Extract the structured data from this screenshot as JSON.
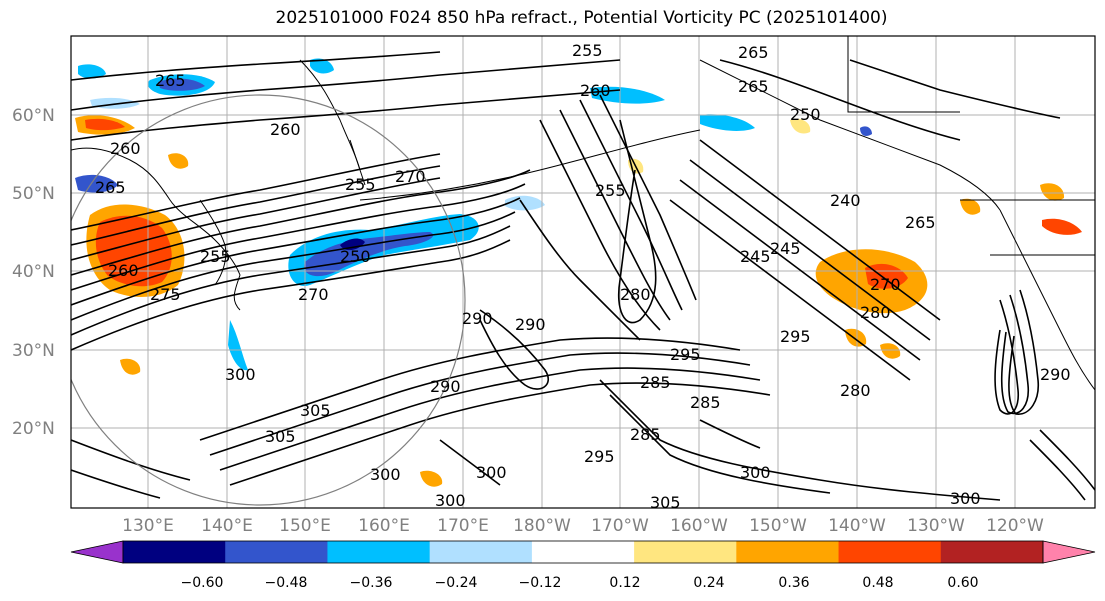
{
  "title": "2025101000 F024 850 hPa refract., Potential Vorticity PC (2025101400)",
  "lat_labels": [
    "60°N",
    "50°N",
    "40°N",
    "30°N",
    "20°N"
  ],
  "lon_labels": [
    "130°E",
    "140°E",
    "150°E",
    "160°E",
    "170°E",
    "180°W",
    "170°W",
    "160°W",
    "150°W",
    "140°W",
    "130°W",
    "120°W"
  ],
  "contour_labels": [
    "265",
    "255",
    "265",
    "260",
    "265",
    "250",
    "260",
    "260",
    "265",
    "270",
    "255",
    "255",
    "240",
    "265",
    "245",
    "245",
    "260",
    "255",
    "250",
    "270",
    "270",
    "280",
    "290",
    "290",
    "295",
    "285",
    "280",
    "305",
    "300",
    "300",
    "305",
    "300",
    "285",
    "300",
    "300",
    "290",
    "295",
    "285",
    "280",
    "275",
    "305",
    "300",
    "290",
    "295"
  ],
  "colorbar": {
    "ticks": [
      "−0.60",
      "−0.48",
      "−0.36",
      "−0.24",
      "−0.12",
      "0.12",
      "0.24",
      "0.36",
      "0.48",
      "0.60"
    ],
    "colors": [
      "#9932cc",
      "#000080",
      "#3355cc",
      "#00bfff",
      "#b0e0ff",
      "#ffffff",
      "#ffe680",
      "#ffa500",
      "#ff4500",
      "#b22222",
      "#ff82ab"
    ]
  },
  "anomaly_colors": {
    "neg_strong": "#3355cc",
    "neg_mid": "#00bfff",
    "neg_weak": "#b0e0ff",
    "neg_extreme": "#000080",
    "pos_weak": "#ffe680",
    "pos_mid": "#ffa500",
    "pos_strong": "#ff4500",
    "pos_extreme": "#b22222"
  }
}
